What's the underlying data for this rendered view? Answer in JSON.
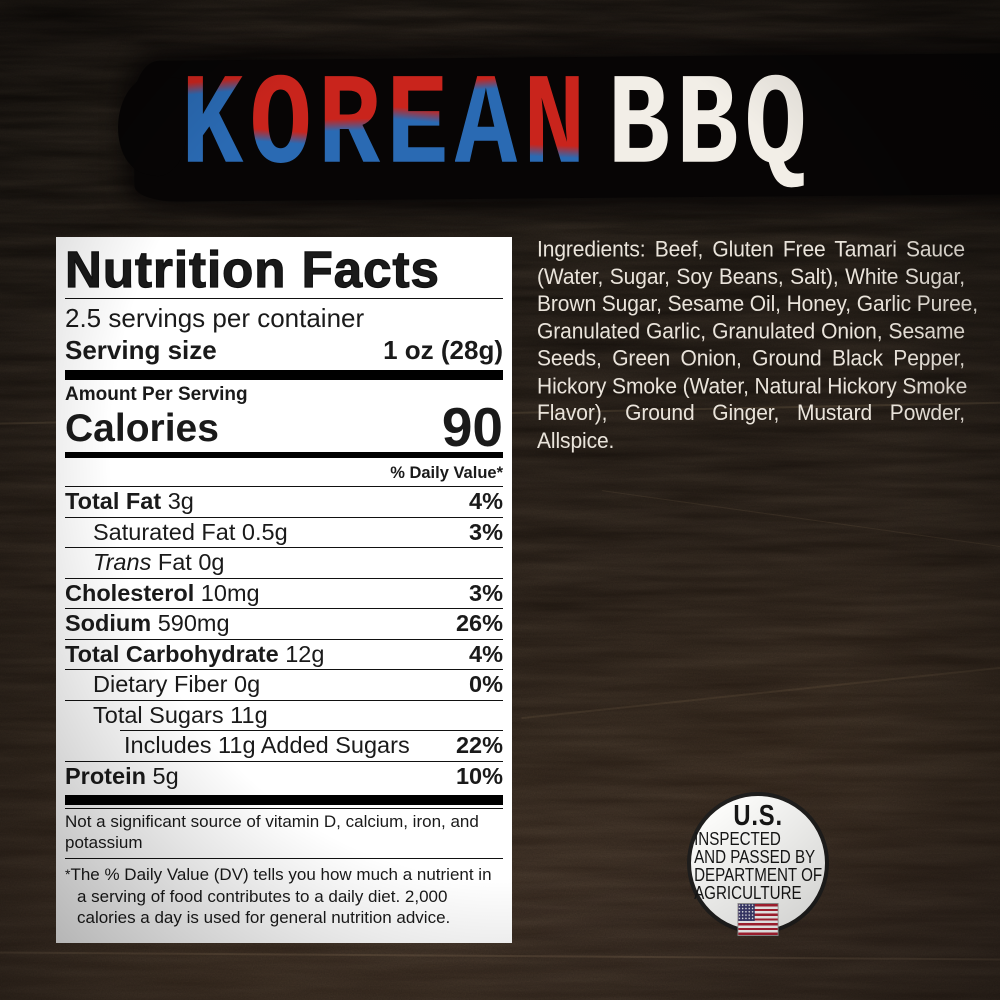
{
  "header": {
    "title_part1": "KOREAN",
    "title_part2": "BBQ"
  },
  "nutrition_label": {
    "title": "Nutrition Facts",
    "servings_per_container": "2.5 servings per container",
    "serving_size_label": "Serving size",
    "serving_size_value": "1 oz (28g)",
    "amount_per_serving_label": "Amount Per Serving",
    "calories_label": "Calories",
    "calories_value": "90",
    "daily_value_header": "% Daily Value*",
    "nutrient_rows": [
      {
        "name": "Total Fat",
        "amount": "3g",
        "daily_value": "4%",
        "style": "bold",
        "indent": 0
      },
      {
        "name": "Saturated Fat",
        "amount": "0.5g",
        "daily_value": "3%",
        "style": "regular",
        "indent": 1
      },
      {
        "name": "Trans Fat",
        "amount": "0g",
        "daily_value": "",
        "style": "italic-prefix",
        "indent": 1
      },
      {
        "name": "Cholesterol",
        "amount": "10mg",
        "daily_value": "3%",
        "style": "bold",
        "indent": 0
      },
      {
        "name": "Sodium",
        "amount": "590mg",
        "daily_value": "26%",
        "style": "bold",
        "indent": 0
      },
      {
        "name": "Total Carbohydrate",
        "amount": "12g",
        "daily_value": "4%",
        "style": "bold",
        "indent": 0
      },
      {
        "name": "Dietary Fiber",
        "amount": "0g",
        "daily_value": "0%",
        "style": "regular",
        "indent": 1
      },
      {
        "name": "Total Sugars",
        "amount": "11g",
        "daily_value": "",
        "style": "regular",
        "indent": 1
      },
      {
        "name": "Includes 11g Added Sugars",
        "amount": "",
        "daily_value": "22%",
        "style": "regular",
        "indent": 2,
        "partial_rule": true
      },
      {
        "name": "Protein",
        "amount": "5g",
        "daily_value": "10%",
        "style": "bold",
        "indent": 0
      }
    ],
    "not_significant_note": "Not a significant source of vitamin D, calcium, iron, and potassium",
    "footnote_marker": "*",
    "footnote": "The % Daily Value (DV) tells you how much a nutrient in a serving of food contributes to a daily diet. 2,000 calories a day is used for general nutrition advice."
  },
  "ingredients": {
    "lines": [
      "Ingredients: Beef, Gluten Free Tamari Sauce",
      "(Water, Sugar, Soy Beans, Salt), White Sugar,",
      "Brown Sugar, Sesame Oil, Honey, Garlic Puree,",
      "Granulated Garlic, Granulated Onion, Sesame",
      "Seeds, Green Onion, Ground Black Pepper,",
      "Hickory Smoke (Water, Natural Hickory Smoke",
      "Flavor), Ground Ginger, Mustard Powder,",
      "Allspice."
    ]
  },
  "inspection_seal": {
    "line1": "U.S.",
    "lines": [
      "INSPECTED",
      "AND PASSED BY",
      "DEPARTMENT OF",
      "AGRICULTURE"
    ],
    "flag_icon": "us-flag-icon"
  },
  "colors": {
    "title_red": "#c9241c",
    "title_blue": "#2a6ab3",
    "title_white": "#f2eee7",
    "label_bg": "#ffffff",
    "label_text": "#1a1a1a",
    "ingredients_text": "#eae4db",
    "flag_red": "#b22234",
    "flag_blue": "#3c3b6e"
  }
}
